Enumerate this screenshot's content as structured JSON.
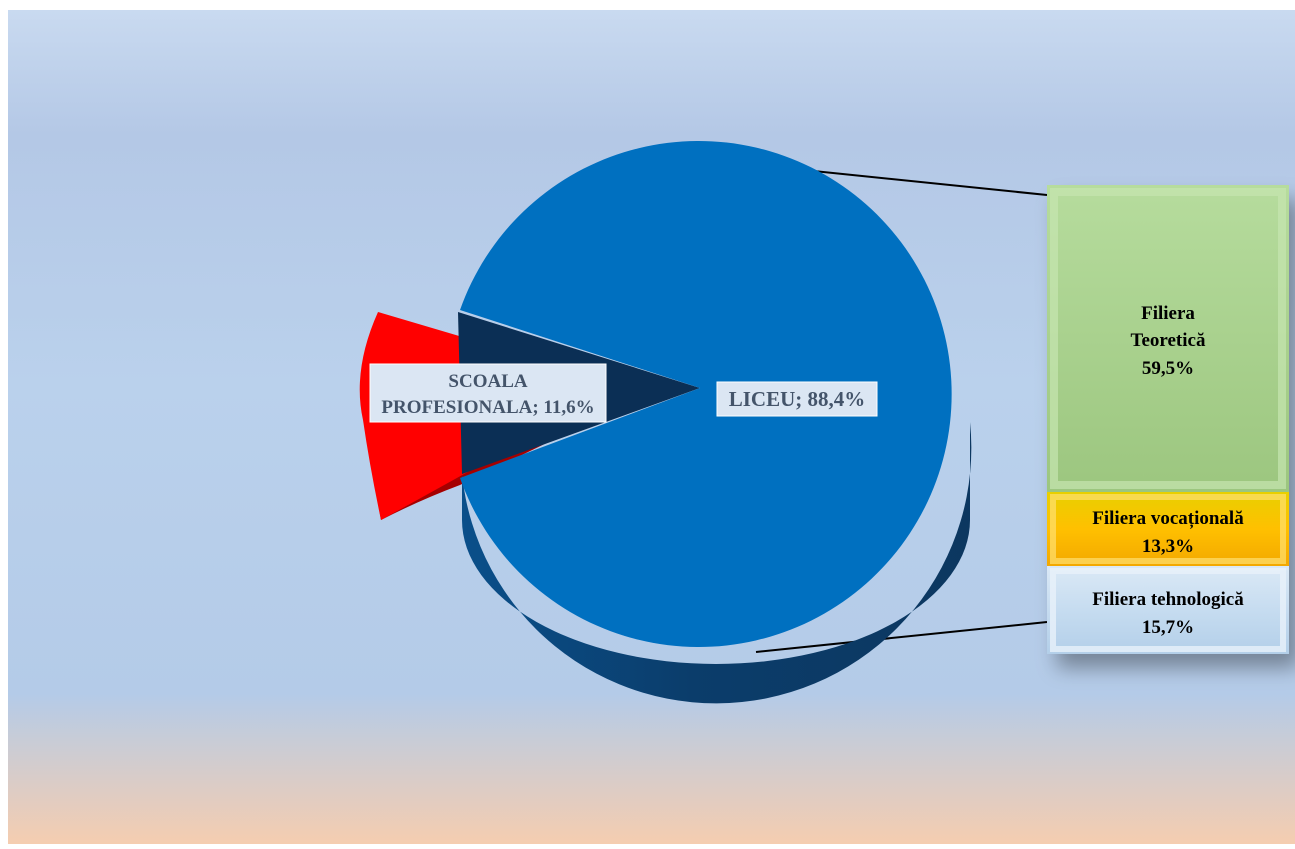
{
  "chart_data": {
    "type": "pie",
    "variant": "bar-of-pie-3d",
    "title": "",
    "slices": [
      {
        "label": "SCOALA PROFESIONALA",
        "value": 11.6,
        "value_text": "11,6%",
        "color": "#ff0000",
        "exploded": true
      },
      {
        "label": "LICEU",
        "value": 88.4,
        "value_text": "88,4%",
        "color": "#0070c0",
        "exploded": false
      }
    ],
    "breakdown_of": "LICEU",
    "breakdown": [
      {
        "label": "Filiera Teoretică",
        "value": 59.5,
        "value_text": "59,5%",
        "color": "#a9d18e"
      },
      {
        "label": "Filiera vocațională",
        "value": 13.3,
        "value_text": "13,3%",
        "color": "#ffc000"
      },
      {
        "label": "Filiera tehnologică",
        "value": 15.7,
        "value_text": "15,7%",
        "color": "#bdd7ee"
      }
    ],
    "legend": "none",
    "background_colors": [
      "#c9daf0",
      "#b4c8e6",
      "#bad1ec",
      "#b4cbe8",
      "#f5cdb0"
    ]
  },
  "labels": {
    "scoala_line1": "SCOALA",
    "scoala_line2": "PROFESIONALA; 11,6%",
    "liceu": "LICEU; 88,4%",
    "teoretica_line1": "Filiera",
    "teoretica_line2": "Teoretică",
    "teoretica_value": "59,5%",
    "vocationala_line1": "Filiera vocațională",
    "vocationala_value": "13,3%",
    "tehnologica_line1": "Filiera tehnologică",
    "tehnologica_value": "15,7%"
  }
}
